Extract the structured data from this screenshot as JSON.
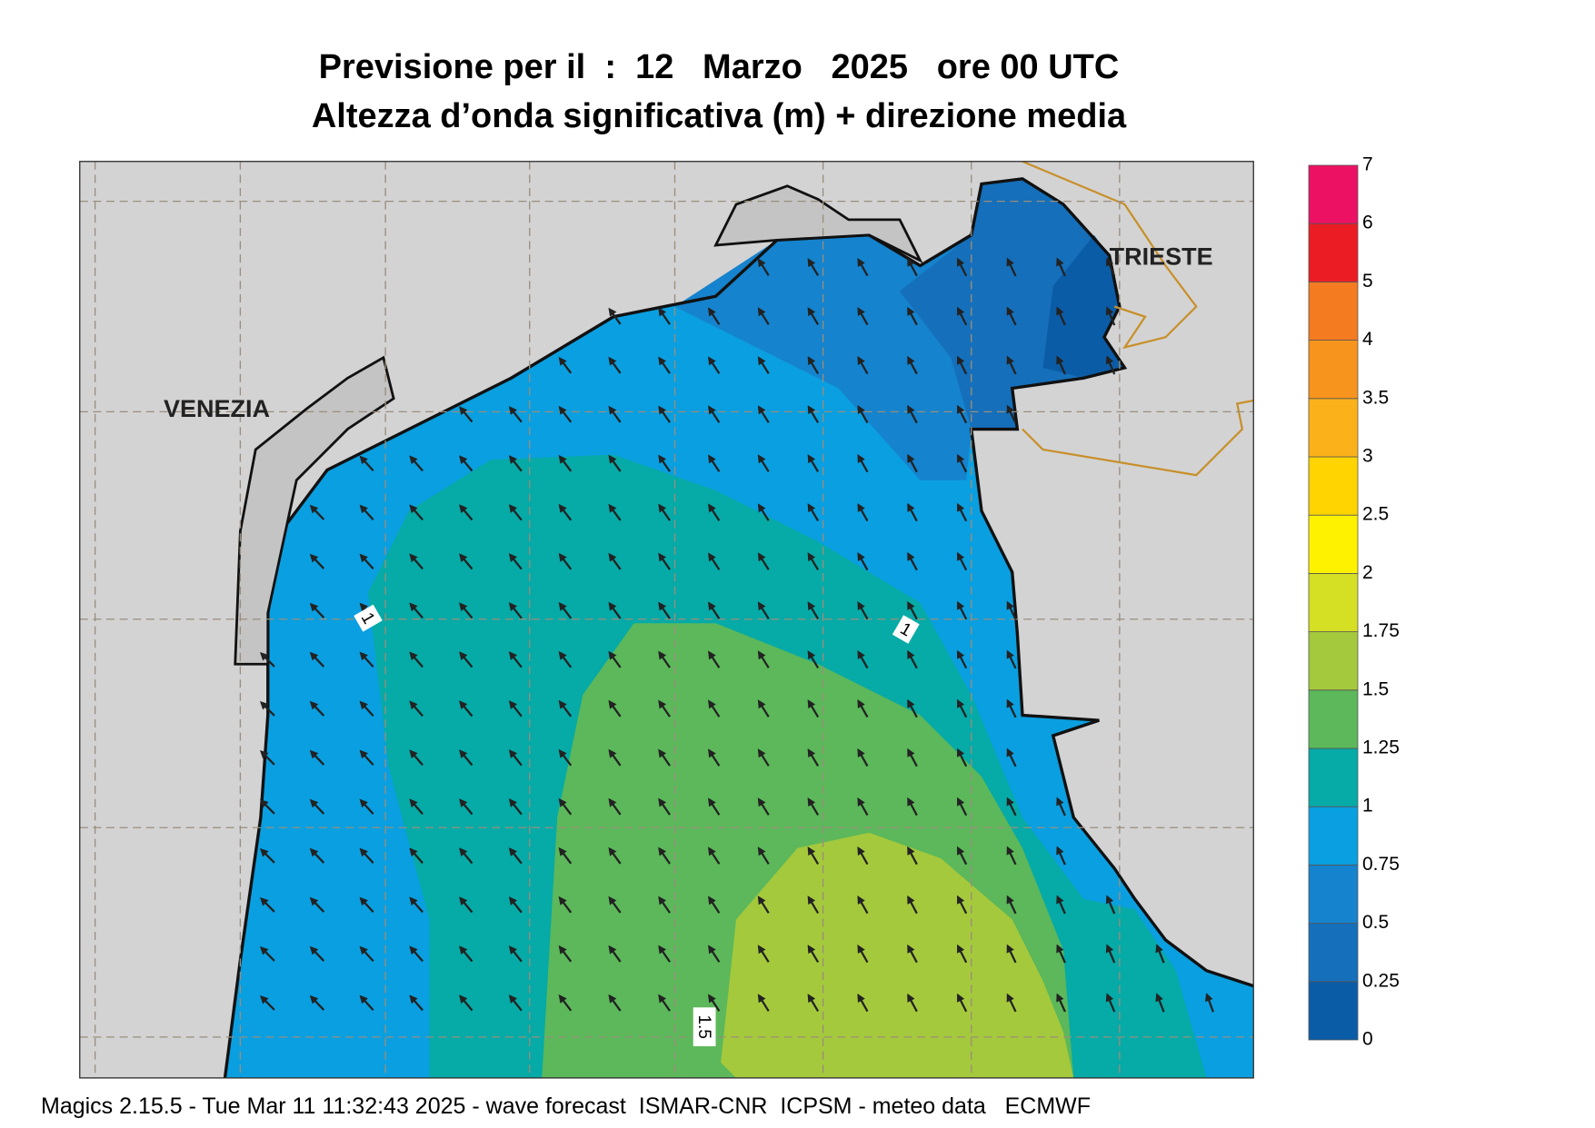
{
  "header": {
    "title_line1": "Previsione per il  :  12   Marzo   2025   ore 00 UTC",
    "title_line2": "Altezza d’onda significativa (m) + direzione media"
  },
  "map": {
    "city_labels": [
      "VENEZIA",
      "TRIESTE"
    ],
    "contour_labels": [
      "1",
      "1",
      "1.5"
    ]
  },
  "legend": {
    "levels": [
      "0",
      "0.25",
      "0.5",
      "0.75",
      "1",
      "1.25",
      "1.5",
      "1.75",
      "2",
      "2.5",
      "3",
      "3.5",
      "4",
      "5",
      "6",
      "7"
    ],
    "colors": [
      "#0b5ca6",
      "#156fba",
      "#1583cd",
      "#0a9fe0",
      "#06aaa6",
      "#5cb85a",
      "#a5c93c",
      "#d5e024",
      "#fff200",
      "#ffd400",
      "#fbb21a",
      "#f7941d",
      "#f47b20",
      "#ec1c24",
      "#ec1163"
    ]
  },
  "footer": "Magics 2.15.5 - Tue Mar 11 11:32:43 2025 - wave forecast  ISMAR-CNR  ICPSM - meteo data   ECMWF"
}
